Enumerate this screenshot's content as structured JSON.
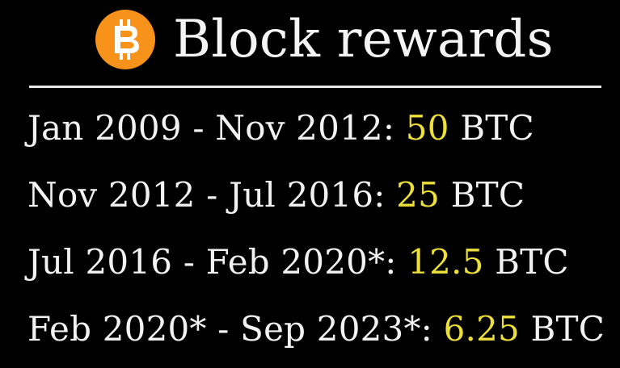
{
  "title": "Block rewards",
  "logo": {
    "icon": "bitcoin-icon",
    "glyph": "₿",
    "color": "#f7931a"
  },
  "colors": {
    "background": "#000000",
    "text": "#f2f2f2",
    "highlight": "#ecdf3a"
  },
  "rewards": [
    {
      "period": "Jan 2009 - Nov 2012:",
      "amount": "50",
      "unit": "BTC"
    },
    {
      "period": "Nov 2012 - Jul 2016:",
      "amount": "25",
      "unit": "BTC"
    },
    {
      "period": "Jul 2016 - Feb 2020*:",
      "amount": "12.5",
      "unit": "BTC"
    },
    {
      "period": "Feb 2020* - Sep 2023*:",
      "amount": "6.25",
      "unit": "BTC"
    }
  ]
}
